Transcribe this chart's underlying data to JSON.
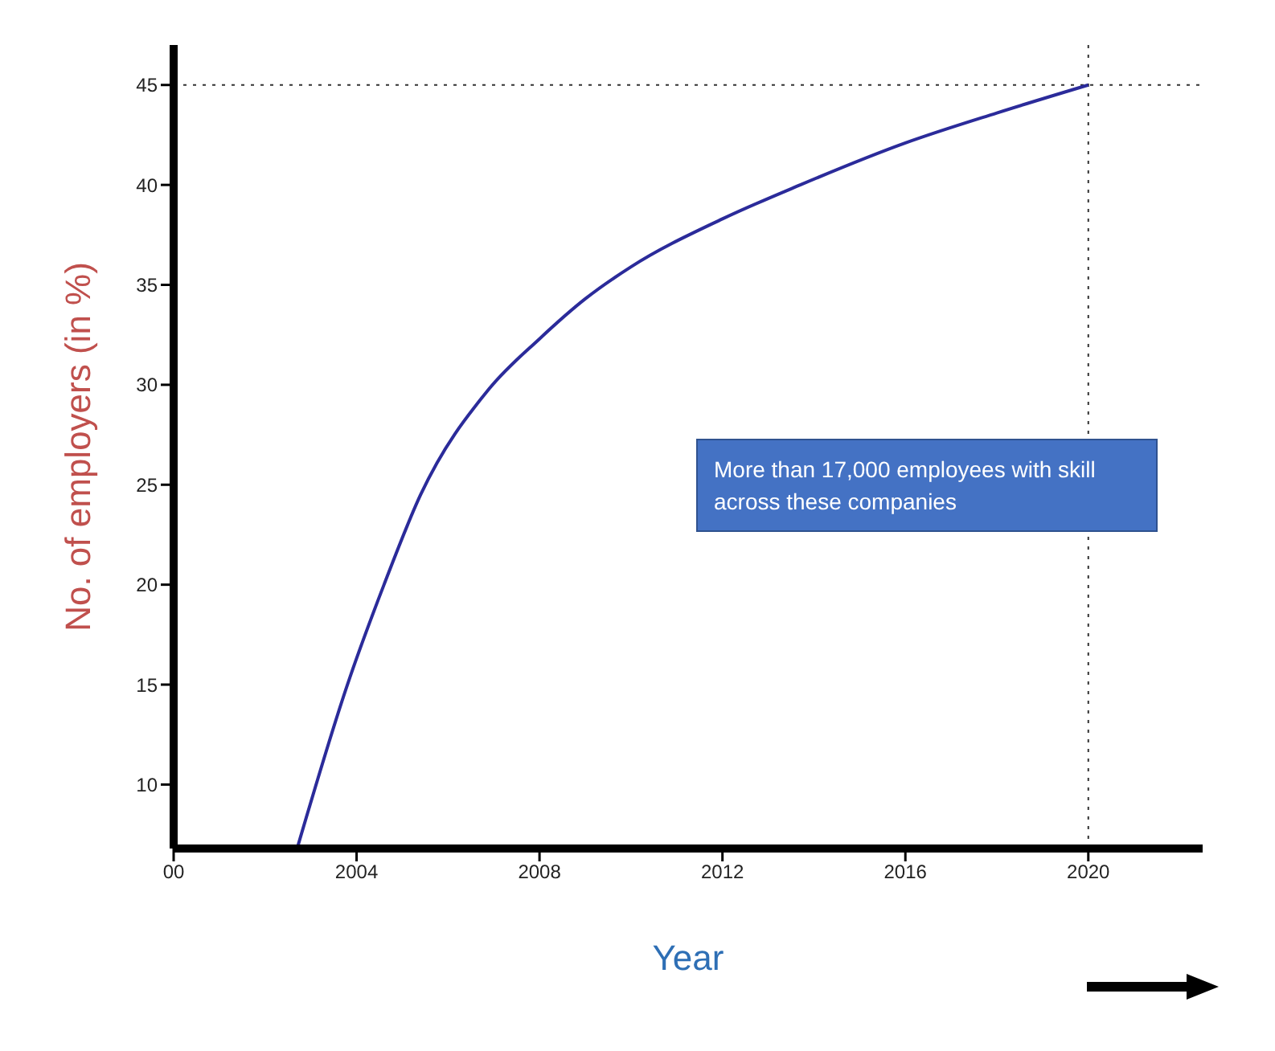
{
  "chart_data": {
    "type": "line",
    "xlabel": "Year",
    "ylabel": "No. of employers (in %)",
    "x": [
      2002.7,
      2003.8,
      2004.6,
      2005.4,
      2006.9,
      2008,
      2009,
      2010,
      2012,
      2013.7,
      2016,
      2018,
      2020
    ],
    "series": [
      {
        "color": "#2b2b9a",
        "values": [
          6.8,
          15,
          20,
          24.5,
          29.8,
          32.3,
          34.3,
          35.9,
          38.3,
          40,
          42.1,
          43.6,
          45
        ]
      }
    ],
    "xlim": [
      2000,
      2022.5
    ],
    "ylim": [
      6.8,
      47
    ],
    "xticks": [
      {
        "value": 2000,
        "label": "00"
      },
      2004,
      2008,
      2012,
      2016,
      2020
    ],
    "yticks": [
      10,
      15,
      20,
      25,
      30,
      35,
      40,
      45
    ],
    "ref_lines": [
      {
        "axis": "y",
        "value": 45,
        "label": null,
        "line_style": "dotted",
        "color": "#333333"
      },
      {
        "axis": "x",
        "value": 2020,
        "label": null,
        "line_style": "dotted",
        "color": "#333333"
      }
    ],
    "annotations": [
      "More than 17,000 employees with skill across these companies"
    ],
    "grid": false,
    "legend": false,
    "marker": "none",
    "line_style": "solid"
  }
}
